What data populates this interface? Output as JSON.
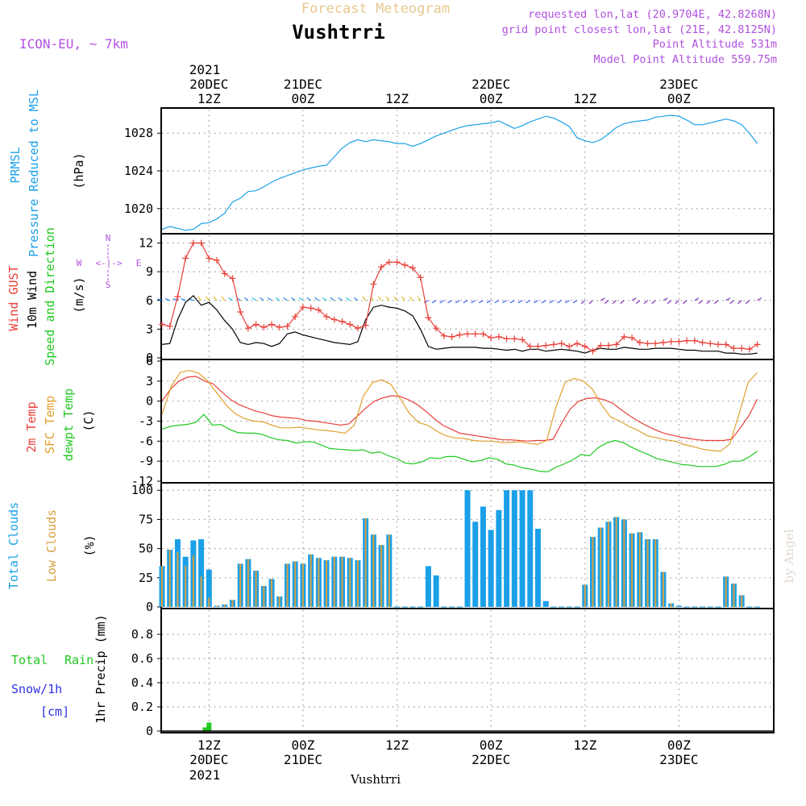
{
  "header": {
    "subtitle": "Forecast Meteogram",
    "title": "Vushtrri",
    "model": "ICON-EU, ~ 7km",
    "requested": "requested lon,lat (20.9704E, 42.8268N)",
    "gridpoint": "grid point closest lon,lat (21E, 42.8125N)",
    "point_alt": "Point Altitude 531m",
    "model_alt": "Model Point Altitude 559.75m",
    "footer_name": "Vushtrri",
    "watermark": "by Angel"
  },
  "time_axis": {
    "top_year": "2021",
    "bottom_year": "2021",
    "ticks": [
      {
        "hour": 6,
        "l1": "12Z",
        "l2": "20DEC"
      },
      {
        "hour": 18,
        "l1": "00Z",
        "l2": "21DEC"
      },
      {
        "hour": 30,
        "l1": "12Z",
        "l2": ""
      },
      {
        "hour": 42,
        "l1": "00Z",
        "l2": "22DEC"
      },
      {
        "hour": 54,
        "l1": "12Z",
        "l2": ""
      },
      {
        "hour": 66,
        "l1": "00Z",
        "l2": "23DEC"
      }
    ]
  },
  "colors": {
    "pressure": "#1ba0e8",
    "gust": "#e8403a",
    "wind": "#000000",
    "temp2m": "#e8403a",
    "sfc": "#e0a030",
    "dewpt": "#20c820",
    "total_cloud": "#1ba0e8",
    "low_cloud": "#d8a040",
    "rain": "#20c820",
    "snow": "#3030e0",
    "label_purple": "#b050e0",
    "title_gold": "#e8c890"
  },
  "labels": {
    "p_pressure": {
      "a": "PRMSL",
      "b": "Pressure Reduced to MSL",
      "unit": "(hPa)"
    },
    "p_wind": {
      "a": "Wind GUST",
      "b": "10m Wind",
      "c": "Speed and Direction",
      "unit": "(m/s)"
    },
    "compass": {
      "n": "N",
      "s": "S",
      "w": "W",
      "e": "E",
      "arrow": "<-|->"
    },
    "p_temp": {
      "a": "2m Temp",
      "b": "SFC Temp",
      "c": "dewpt Temp",
      "unit": "(C)"
    },
    "p_cloud": {
      "a": "Total Clouds",
      "b": "Low Clouds",
      "unit": "(%)"
    },
    "p_precip": {
      "a": "Total",
      "a2": "Rain",
      "b": "Snow/1h",
      "c": "[cm]",
      "unit": "1hr Precip (mm)"
    }
  },
  "chart_data": [
    {
      "type": "line",
      "title": "PRMSL Pressure Reduced to MSL",
      "ylabel": "hPa",
      "ylim": [
        1017.5,
        1030.5
      ],
      "yticks": [
        1020,
        1024,
        1028
      ],
      "x_hours": [
        0,
        1,
        2,
        3,
        4,
        5,
        6,
        7,
        8,
        9,
        10,
        11,
        12,
        13,
        14,
        15,
        16,
        17,
        18,
        19,
        20,
        21,
        22,
        23,
        24,
        25,
        26,
        27,
        28,
        29,
        30,
        31,
        32,
        33,
        34,
        35,
        36,
        37,
        38,
        39,
        40,
        41,
        42,
        43,
        44,
        45,
        46,
        47,
        48,
        49,
        50,
        51,
        52,
        53,
        54,
        55,
        56,
        57,
        58,
        59,
        60,
        61,
        62,
        63,
        64,
        65,
        66,
        67,
        68,
        69,
        70,
        71,
        72,
        73,
        74,
        75,
        76
      ],
      "values": [
        1017.8,
        1018.1,
        1017.9,
        1017.7,
        1017.8,
        1018.4,
        1018.5,
        1018.9,
        1019.5,
        1020.7,
        1021.1,
        1021.8,
        1021.9,
        1022.3,
        1022.8,
        1023.2,
        1023.5,
        1023.8,
        1024.1,
        1024.3,
        1024.5,
        1024.6,
        1025.5,
        1026.4,
        1027.0,
        1027.3,
        1027.1,
        1027.3,
        1027.2,
        1027.1,
        1026.9,
        1026.9,
        1026.6,
        1026.9,
        1027.3,
        1027.7,
        1028.0,
        1028.3,
        1028.6,
        1028.8,
        1028.9,
        1029.0,
        1029.1,
        1029.3,
        1028.9,
        1028.5,
        1028.8,
        1029.2,
        1029.5,
        1029.8,
        1029.6,
        1029.2,
        1028.7,
        1027.5,
        1027.2,
        1027.0,
        1027.3,
        1027.9,
        1028.6,
        1029.0,
        1029.2,
        1029.3,
        1029.4,
        1029.7,
        1029.8,
        1029.9,
        1029.8,
        1029.4,
        1028.9,
        1028.9,
        1029.1,
        1029.3,
        1029.5,
        1029.3,
        1028.9,
        1028.0,
        1026.9
      ]
    },
    {
      "type": "line",
      "title": "Wind GUST / 10m Wind Speed and Direction",
      "ylabel": "m/s",
      "ylim": [
        0,
        12.8
      ],
      "yticks": [
        0,
        3,
        6,
        9,
        12
      ],
      "x_hours": [
        0,
        1,
        2,
        3,
        4,
        5,
        6,
        7,
        8,
        9,
        10,
        11,
        12,
        13,
        14,
        15,
        16,
        17,
        18,
        19,
        20,
        21,
        22,
        23,
        24,
        25,
        26,
        27,
        28,
        29,
        30,
        31,
        32,
        33,
        34,
        35,
        36,
        37,
        38,
        39,
        40,
        41,
        42,
        43,
        44,
        45,
        46,
        47,
        48,
        49,
        50,
        51,
        52,
        53,
        54,
        55,
        56,
        57,
        58,
        59,
        60,
        61,
        62,
        63,
        64,
        65,
        66,
        67,
        68,
        69,
        70,
        71,
        72,
        73,
        74,
        75,
        76
      ],
      "series": [
        {
          "name": "Wind GUST",
          "values": [
            3.5,
            3.3,
            6.4,
            10.4,
            12.0,
            12.0,
            10.4,
            10.2,
            8.8,
            8.3,
            4.8,
            3.1,
            3.5,
            3.2,
            3.5,
            3.2,
            3.3,
            4.3,
            5.3,
            5.2,
            5.0,
            4.3,
            4.0,
            3.8,
            3.5,
            3.1,
            3.4,
            7.7,
            9.5,
            10.0,
            10.0,
            9.7,
            9.4,
            8.4,
            4.2,
            3.1,
            2.3,
            2.2,
            2.4,
            2.5,
            2.5,
            2.5,
            2.1,
            2.2,
            2.0,
            2.0,
            1.9,
            1.2,
            1.2,
            1.3,
            1.4,
            1.5,
            1.2,
            1.5,
            1.2,
            0.7,
            1.3,
            1.3,
            1.4,
            2.2,
            2.1,
            1.6,
            1.5,
            1.5,
            1.6,
            1.7,
            1.7,
            1.8,
            1.8,
            1.6,
            1.5,
            1.4,
            1.4,
            1.0,
            1.0,
            0.9,
            1.4
          ]
        },
        {
          "name": "10m Wind",
          "values": [
            1.4,
            1.5,
            4.0,
            5.8,
            6.5,
            5.5,
            5.8,
            5.0,
            3.9,
            3.0,
            1.6,
            1.4,
            1.6,
            1.5,
            1.2,
            1.5,
            2.5,
            2.7,
            2.4,
            2.2,
            2.0,
            1.8,
            1.6,
            1.5,
            1.4,
            1.7,
            4.0,
            5.3,
            5.5,
            5.3,
            5.2,
            4.9,
            4.4,
            3.0,
            1.2,
            0.9,
            1.0,
            1.1,
            1.1,
            1.1,
            1.1,
            1.0,
            1.0,
            0.9,
            0.8,
            0.9,
            0.7,
            0.9,
            0.9,
            0.7,
            0.8,
            0.9,
            0.8,
            0.7,
            0.5,
            0.8,
            1.0,
            0.9,
            0.9,
            1.1,
            1.0,
            0.9,
            0.9,
            1.0,
            1.0,
            1.0,
            0.9,
            0.8,
            0.8,
            0.7,
            0.7,
            0.7,
            0.5,
            0.5,
            0.4,
            0.4,
            0.5
          ]
        }
      ]
    },
    {
      "type": "line",
      "title": "2m Temp / SFC Temp / dewpt Temp",
      "ylabel": "C",
      "ylim": [
        -12,
        6
      ],
      "yticks": [
        -12,
        -9,
        -6,
        -3,
        0,
        3,
        6
      ],
      "x_hours": [
        0,
        1,
        2,
        3,
        4,
        5,
        6,
        7,
        8,
        9,
        10,
        11,
        12,
        13,
        14,
        15,
        16,
        17,
        18,
        19,
        20,
        21,
        22,
        23,
        24,
        25,
        26,
        27,
        28,
        29,
        30,
        31,
        32,
        33,
        34,
        35,
        36,
        37,
        38,
        39,
        40,
        41,
        42,
        43,
        44,
        45,
        46,
        47,
        48,
        49,
        50,
        51,
        52,
        53,
        54,
        55,
        56,
        57,
        58,
        59,
        60,
        61,
        62,
        63,
        64,
        65,
        66,
        67,
        68,
        69,
        70,
        71,
        72,
        73,
        74,
        75,
        76
      ],
      "series": [
        {
          "name": "2m Temp",
          "values": [
            0.0,
            1.8,
            3.0,
            3.6,
            3.7,
            3.0,
            2.6,
            1.4,
            0.3,
            -0.5,
            -1.0,
            -1.5,
            -1.8,
            -2.2,
            -2.4,
            -2.5,
            -2.6,
            -2.9,
            -3.0,
            -3.2,
            -3.4,
            -3.6,
            -3.4,
            -2.2,
            -1.0,
            0.0,
            0.5,
            0.8,
            0.7,
            0.2,
            -0.5,
            -1.5,
            -2.6,
            -3.6,
            -4.2,
            -4.8,
            -5.0,
            -5.2,
            -5.4,
            -5.6,
            -5.8,
            -5.8,
            -5.9,
            -6.0,
            -5.9,
            -5.9,
            -5.7,
            -3.3,
            -1.2,
            0.0,
            0.4,
            0.5,
            0.2,
            -0.3,
            -1.3,
            -2.2,
            -3.0,
            -3.7,
            -4.3,
            -4.8,
            -5.1,
            -5.4,
            -5.6,
            -5.8,
            -5.9,
            -5.9,
            -5.9,
            -5.7,
            -4.0,
            -2.2,
            0.3
          ],
          "x_note": "x_hours 0-76 subsampled"
        },
        {
          "name": "SFC Temp",
          "values": [
            -2.0,
            2.2,
            4.3,
            4.6,
            4.2,
            3.0,
            1.2,
            -0.6,
            -1.9,
            -2.6,
            -3.0,
            -3.1,
            -3.6,
            -4.0,
            -4.0,
            -3.9,
            -4.1,
            -4.3,
            -4.4,
            -4.6,
            -4.8,
            -3.6,
            0.8,
            2.8,
            3.2,
            2.5,
            0.4,
            -1.8,
            -3.2,
            -3.6,
            -4.5,
            -5.2,
            -5.5,
            -5.6,
            -5.9,
            -6.0,
            -6.0,
            -6.2,
            -6.2,
            -6.1,
            -6.3,
            -6.5,
            -5.9,
            -1.0,
            2.8,
            3.4,
            3.0,
            1.8,
            -0.6,
            -2.4,
            -3.0,
            -3.8,
            -4.4,
            -5.2,
            -5.5,
            -5.8,
            -6.0,
            -6.5,
            -6.8,
            -7.2,
            -7.4,
            -7.5,
            -6.4,
            -2.0,
            2.8,
            4.3
          ],
          "x_note": "x_hours 0-76 subsampled"
        },
        {
          "name": "dewpt Temp",
          "values": [
            -4.2,
            -3.8,
            -3.6,
            -3.5,
            -3.2,
            -2.0,
            -3.6,
            -3.5,
            -4.2,
            -4.7,
            -4.8,
            -4.8,
            -5.0,
            -5.5,
            -5.8,
            -5.9,
            -6.3,
            -6.1,
            -6.1,
            -6.6,
            -7.1,
            -7.2,
            -7.3,
            -7.4,
            -7.3,
            -7.8,
            -7.6,
            -8.2,
            -8.6,
            -9.3,
            -9.4,
            -9.1,
            -8.5,
            -8.6,
            -8.3,
            -8.3,
            -8.7,
            -9.1,
            -8.9,
            -8.5,
            -8.7,
            -9.4,
            -9.6,
            -10.0,
            -10.2,
            -10.5,
            -10.6,
            -9.9,
            -9.4,
            -8.8,
            -8.0,
            -8.2,
            -7.0,
            -6.3,
            -5.9,
            -6.2,
            -6.9,
            -7.5,
            -8.0,
            -8.6,
            -8.9,
            -9.2,
            -9.5,
            -9.6,
            -9.8,
            -9.8,
            -9.8,
            -9.5,
            -9.0,
            -9.0,
            -8.4,
            -7.5
          ],
          "x_note": "x_hours 0-76 subsampled"
        }
      ]
    },
    {
      "type": "bar",
      "title": "Total Clouds / Low Clouds",
      "ylabel": "%",
      "ylim": [
        0,
        105
      ],
      "yticks": [
        0,
        25,
        50,
        75,
        100
      ],
      "x_hours": [
        0,
        1,
        2,
        3,
        4,
        5,
        6,
        7,
        8,
        9,
        10,
        11,
        12,
        13,
        14,
        15,
        16,
        17,
        18,
        19,
        20,
        21,
        22,
        23,
        24,
        25,
        26,
        27,
        28,
        29,
        30,
        31,
        32,
        33,
        34,
        35,
        36,
        37,
        38,
        39,
        40,
        41,
        42,
        43,
        44,
        45,
        46,
        47,
        48,
        49,
        50,
        51,
        52,
        53,
        54,
        55,
        56,
        57,
        58,
        59,
        60,
        61,
        62,
        63,
        64,
        65,
        66,
        67,
        68,
        69,
        70,
        71,
        72,
        73,
        74,
        75,
        76
      ],
      "series": [
        {
          "name": "Total Clouds",
          "values": [
            35,
            49,
            58,
            43,
            57,
            58,
            32,
            1,
            2,
            6,
            37,
            41,
            31,
            18,
            24,
            9,
            37,
            39,
            37,
            45,
            42,
            40,
            43,
            43,
            42,
            40,
            76,
            62,
            53,
            62,
            0,
            0,
            0,
            0,
            35,
            27,
            0,
            0,
            0,
            100,
            73,
            86,
            66,
            83,
            100,
            100,
            100,
            100,
            67,
            5,
            0,
            0,
            0,
            0,
            19,
            60,
            68,
            73,
            77,
            75,
            63,
            64,
            58,
            58,
            30,
            3,
            1,
            0,
            0,
            0,
            0,
            0,
            26,
            20,
            10,
            0,
            0
          ]
        },
        {
          "name": "Low Clouds",
          "values": [
            35,
            49,
            47,
            35,
            44,
            26,
            8,
            1,
            2,
            6,
            37,
            41,
            31,
            18,
            24,
            9,
            37,
            39,
            37,
            45,
            42,
            40,
            43,
            43,
            42,
            40,
            76,
            62,
            53,
            62,
            0,
            0,
            0,
            0,
            0,
            0,
            0,
            0,
            0,
            0,
            0,
            0,
            0,
            0,
            0,
            0,
            0,
            0,
            0,
            0,
            0,
            0,
            0,
            0,
            19,
            60,
            68,
            73,
            77,
            75,
            63,
            64,
            58,
            58,
            30,
            3,
            0,
            0,
            0,
            0,
            0,
            0,
            26,
            20,
            10,
            0,
            0
          ]
        }
      ]
    },
    {
      "type": "bar",
      "title": "1hr Precip",
      "ylabel": "1hr Precip (mm)",
      "ylim": [
        0,
        1.0
      ],
      "yticks": [
        0,
        0.2,
        0.4,
        0.6,
        0.8
      ],
      "series": [
        {
          "name": "Total Rain",
          "x_hours": [
            5.5,
            6.0
          ],
          "values": [
            0.03,
            0.07
          ]
        },
        {
          "name": "Snow/1h",
          "x_hours": [],
          "values": []
        }
      ]
    }
  ]
}
